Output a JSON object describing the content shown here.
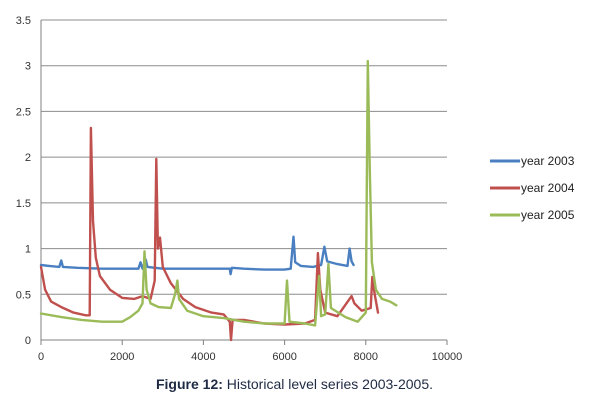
{
  "caption": {
    "label": "Figure 12:",
    "text": " Historical level series 2003-2005."
  },
  "chart_data": {
    "type": "line",
    "xlim": [
      0,
      10000
    ],
    "ylim": [
      0,
      3.5
    ],
    "x_ticks": [
      "0",
      "2000",
      "4000",
      "6000",
      "8000",
      "10000"
    ],
    "y_ticks": [
      "0",
      "0.5",
      "1",
      "1.5",
      "2",
      "2.5",
      "3",
      "3.5"
    ],
    "grid": "horizontal",
    "legend_position": "right",
    "series": [
      {
        "name": "year 2003",
        "color": "#4a7fc1",
        "points": [
          [
            0,
            0.82
          ],
          [
            200,
            0.81
          ],
          [
            450,
            0.8
          ],
          [
            500,
            0.87
          ],
          [
            540,
            0.8
          ],
          [
            900,
            0.79
          ],
          [
            1500,
            0.78
          ],
          [
            2000,
            0.78
          ],
          [
            2400,
            0.78
          ],
          [
            2450,
            0.85
          ],
          [
            2500,
            0.78
          ],
          [
            2580,
            0.88
          ],
          [
            2620,
            0.8
          ],
          [
            3000,
            0.78
          ],
          [
            3500,
            0.78
          ],
          [
            4000,
            0.78
          ],
          [
            4650,
            0.78
          ],
          [
            4670,
            0.72
          ],
          [
            4700,
            0.79
          ],
          [
            5000,
            0.78
          ],
          [
            5500,
            0.77
          ],
          [
            6000,
            0.77
          ],
          [
            6150,
            0.78
          ],
          [
            6220,
            1.13
          ],
          [
            6260,
            0.85
          ],
          [
            6400,
            0.81
          ],
          [
            6700,
            0.8
          ],
          [
            6900,
            0.82
          ],
          [
            6980,
            1.02
          ],
          [
            7050,
            0.86
          ],
          [
            7300,
            0.83
          ],
          [
            7550,
            0.81
          ],
          [
            7600,
            1.0
          ],
          [
            7650,
            0.86
          ],
          [
            7700,
            0.82
          ]
        ]
      },
      {
        "name": "year 2004",
        "color": "#c0504d",
        "points": [
          [
            0,
            0.8
          ],
          [
            100,
            0.55
          ],
          [
            250,
            0.42
          ],
          [
            500,
            0.36
          ],
          [
            800,
            0.3
          ],
          [
            1100,
            0.27
          ],
          [
            1200,
            0.27
          ],
          [
            1230,
            2.32
          ],
          [
            1280,
            1.3
          ],
          [
            1350,
            0.9
          ],
          [
            1450,
            0.7
          ],
          [
            1700,
            0.55
          ],
          [
            2000,
            0.46
          ],
          [
            2300,
            0.45
          ],
          [
            2500,
            0.48
          ],
          [
            2700,
            0.45
          ],
          [
            2800,
            0.65
          ],
          [
            2840,
            1.98
          ],
          [
            2880,
            1.0
          ],
          [
            2930,
            1.12
          ],
          [
            3000,
            0.8
          ],
          [
            3200,
            0.62
          ],
          [
            3500,
            0.45
          ],
          [
            3800,
            0.36
          ],
          [
            4200,
            0.3
          ],
          [
            4500,
            0.28
          ],
          [
            4650,
            0.2
          ],
          [
            4680,
            0.0
          ],
          [
            4720,
            0.22
          ],
          [
            5000,
            0.22
          ],
          [
            5500,
            0.18
          ],
          [
            6000,
            0.17
          ],
          [
            6500,
            0.18
          ],
          [
            6750,
            0.22
          ],
          [
            6820,
            0.95
          ],
          [
            6880,
            0.55
          ],
          [
            7000,
            0.3
          ],
          [
            7300,
            0.26
          ],
          [
            7650,
            0.48
          ],
          [
            7720,
            0.4
          ],
          [
            7900,
            0.32
          ],
          [
            8120,
            0.35
          ],
          [
            8160,
            0.69
          ],
          [
            8220,
            0.5
          ],
          [
            8300,
            0.3
          ]
        ]
      },
      {
        "name": "year 2005",
        "color": "#9bbb59",
        "points": [
          [
            0,
            0.29
          ],
          [
            500,
            0.25
          ],
          [
            1000,
            0.22
          ],
          [
            1500,
            0.2
          ],
          [
            2000,
            0.2
          ],
          [
            2200,
            0.25
          ],
          [
            2400,
            0.32
          ],
          [
            2500,
            0.4
          ],
          [
            2550,
            0.97
          ],
          [
            2600,
            0.55
          ],
          [
            2700,
            0.4
          ],
          [
            2900,
            0.36
          ],
          [
            3200,
            0.35
          ],
          [
            3300,
            0.5
          ],
          [
            3360,
            0.65
          ],
          [
            3400,
            0.45
          ],
          [
            3600,
            0.32
          ],
          [
            4000,
            0.26
          ],
          [
            4500,
            0.24
          ],
          [
            5000,
            0.2
          ],
          [
            5500,
            0.18
          ],
          [
            6000,
            0.18
          ],
          [
            6060,
            0.65
          ],
          [
            6120,
            0.2
          ],
          [
            6500,
            0.18
          ],
          [
            6750,
            0.16
          ],
          [
            6850,
            0.7
          ],
          [
            6900,
            0.26
          ],
          [
            7000,
            0.28
          ],
          [
            7080,
            0.83
          ],
          [
            7140,
            0.35
          ],
          [
            7500,
            0.25
          ],
          [
            7800,
            0.2
          ],
          [
            8000,
            0.3
          ],
          [
            8050,
            3.05
          ],
          [
            8100,
            1.8
          ],
          [
            8150,
            0.85
          ],
          [
            8250,
            0.55
          ],
          [
            8400,
            0.45
          ],
          [
            8600,
            0.42
          ],
          [
            8750,
            0.38
          ]
        ]
      }
    ]
  }
}
